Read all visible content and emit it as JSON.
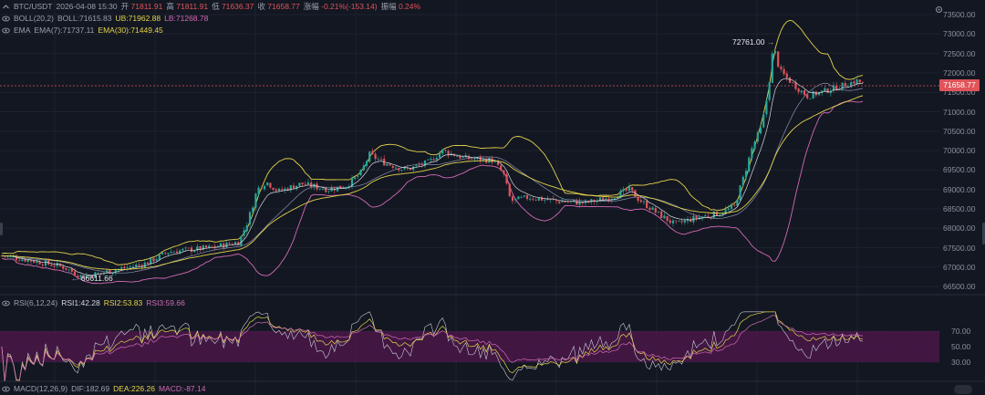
{
  "header": {
    "symbol": "BTC/USDT",
    "datetime": "2026-04-08 15:30",
    "open_label": "开",
    "open": "71811.91",
    "high_label": "高",
    "high": "71811.91",
    "low_label": "低",
    "low": "71636.37",
    "close_label": "收",
    "close": "71658.77",
    "change_label": "涨幅",
    "change": "-0.21%(-153.14)",
    "amp_label": "振幅",
    "amp": "0.24%"
  },
  "boll": {
    "name": "BOLL(20,2)",
    "mid": "BOLL:71615.83",
    "ub": "UB:71962.88",
    "lb": "LB:71268.78"
  },
  "ema": {
    "name": "EMA",
    "ema7": "EMA(7):71737.11",
    "ema30": "EMA(30):71449.45"
  },
  "rsi": {
    "name": "RSI(6,12,24)",
    "rsi1": "RSI1:42.28",
    "rsi2": "RSI2:53.83",
    "rsi3": "RSI3:59.66"
  },
  "macd": {
    "name": "MACD(12,26,9)",
    "dif": "DIF:182.69",
    "dea": "DEA:226.26",
    "macd": "MACD:-87.14"
  },
  "price_axis": [
    "73500.00",
    "73000.00",
    "72500.00",
    "72000.00",
    "71500.00",
    "71000.00",
    "70500.00",
    "70000.00",
    "69500.00",
    "69000.00",
    "68500.00",
    "68000.00",
    "67500.00",
    "67000.00",
    "66500.00"
  ],
  "current_price": "71658.77",
  "annotations": {
    "high": "72761.00",
    "low": "66611.66"
  },
  "rsi_axis": [
    "70.00",
    "50.00",
    "30.00"
  ],
  "colors": {
    "up": "#e0545a",
    "down": "#26a69a",
    "boll": "#e4d34b",
    "lb": "#d26ab5",
    "ema7": "#d6d8de",
    "ema30": "#e4d34b",
    "rsi_band": "#5b1f5a"
  },
  "icons": {
    "eye": "eye-icon",
    "chevron": "chevron-up-icon",
    "settings": "gear-icon"
  }
}
